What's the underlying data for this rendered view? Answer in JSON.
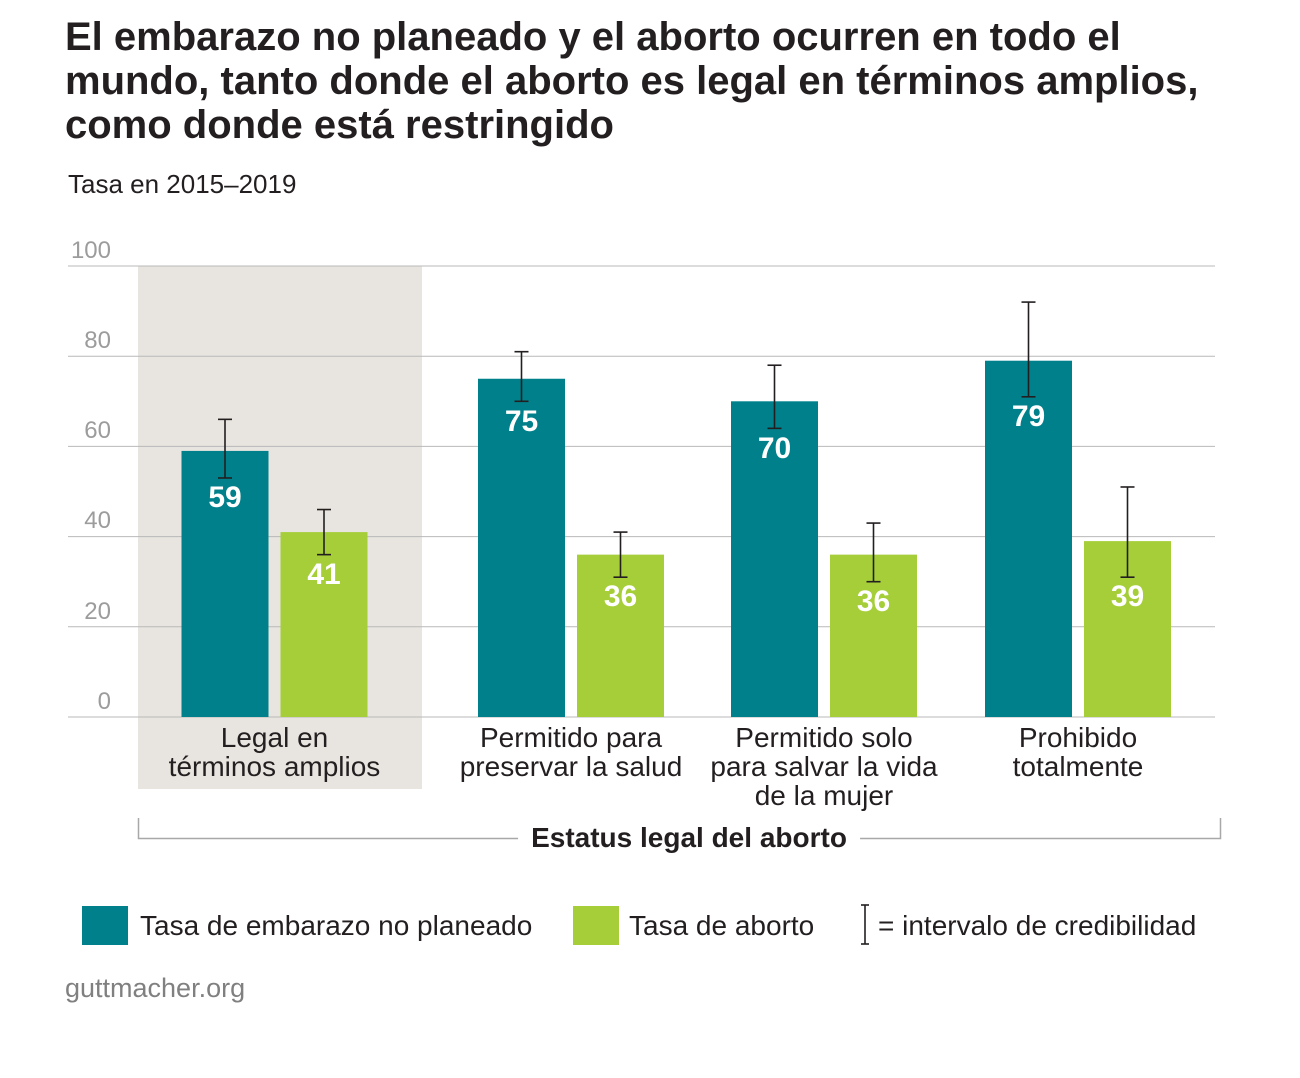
{
  "chart_data": {
    "type": "bar",
    "title": "El embarazo no planeado y el aborto ocurren en todo el\nmundo, tanto donde el aborto es legal en términos amplios,\ncomo donde está restringido",
    "subtitle": "Tasa en 2015–2019",
    "categories": [
      "Legal en\ntérminos amplios",
      "Permitido para\npreservar la salud",
      "Permitido solo\npara salvar la vida\nde la mujer",
      "Prohibido\ntotalmente"
    ],
    "series": [
      {
        "name": "Tasa de embarazo no planeado",
        "color": "#00808a",
        "values": [
          59,
          75,
          70,
          79
        ],
        "ci_low": [
          53,
          70,
          64,
          71
        ],
        "ci_high": [
          66,
          81,
          78,
          92
        ]
      },
      {
        "name": "Tasa de aborto",
        "color": "#a6ce39",
        "values": [
          41,
          36,
          36,
          39
        ],
        "ci_low": [
          36,
          31,
          30,
          31
        ],
        "ci_high": [
          46,
          41,
          43,
          51
        ]
      }
    ],
    "xlabel": "Estatus legal del aborto",
    "ylabel": "",
    "ylim": [
      0,
      100
    ],
    "yticks": [
      0,
      20,
      40,
      60,
      80,
      100
    ],
    "grid": true,
    "ci_legend_label": "= intervalo de credibilidad",
    "legend_position": "bottom",
    "highlight_category_index": 0,
    "highlight_color": "#e8e5e0"
  },
  "footer": {
    "source": "guttmacher.org"
  }
}
